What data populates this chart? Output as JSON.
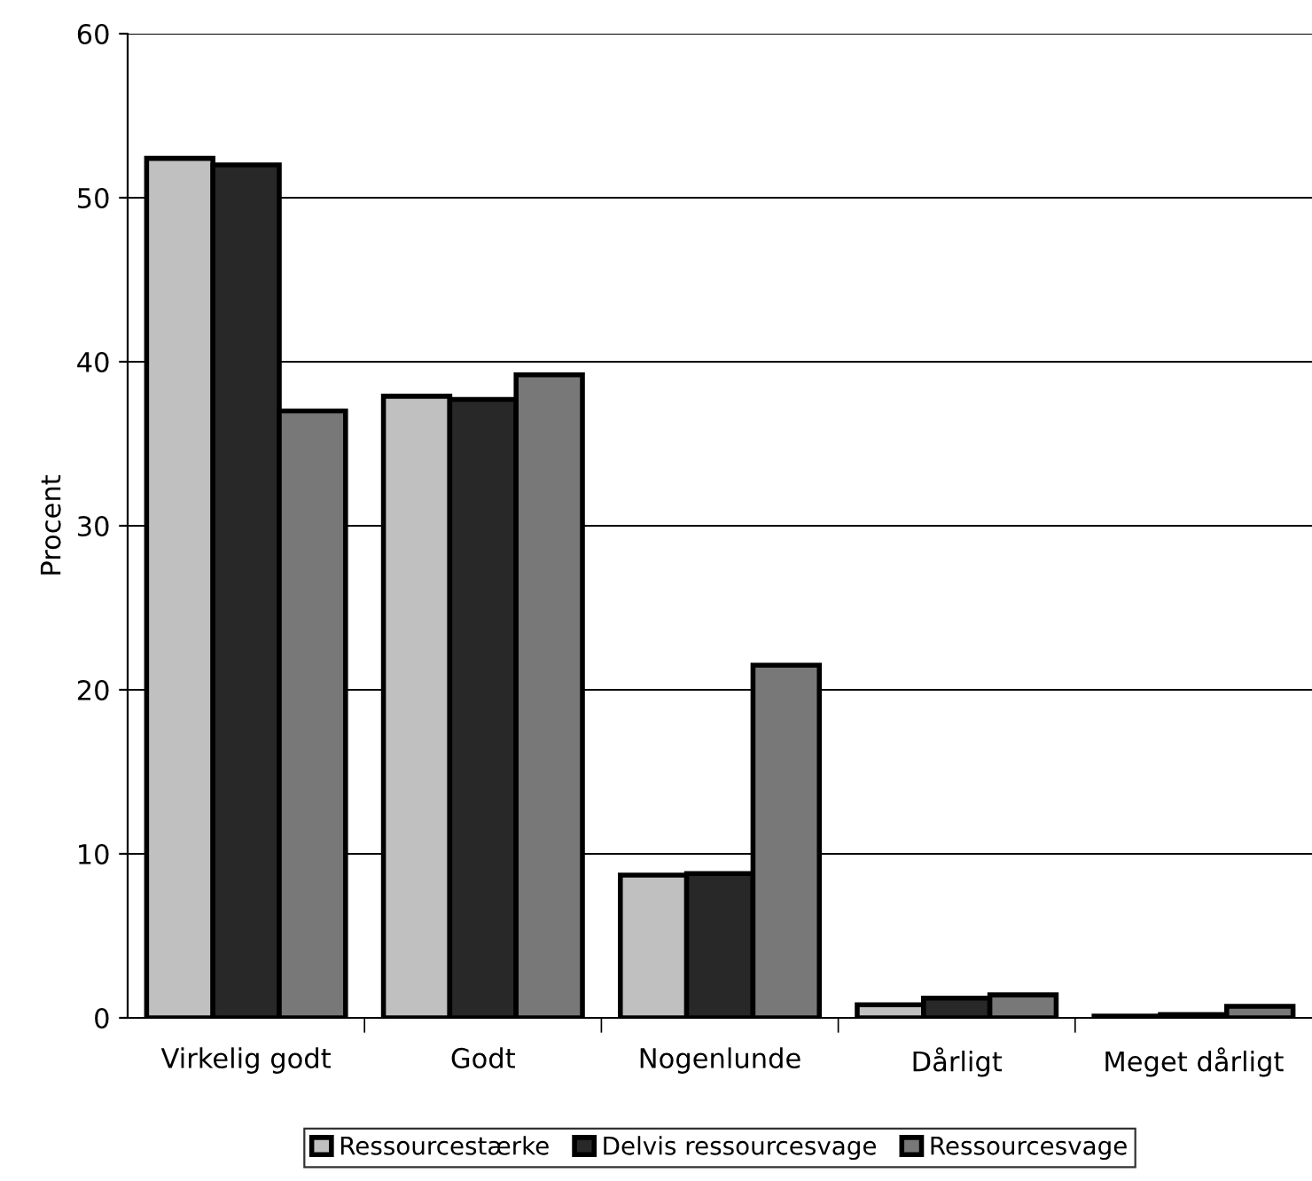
{
  "chart_data": {
    "type": "bar",
    "ylabel": "Procent",
    "categories": [
      "Virkelig godt",
      "Godt",
      "Nogenlunde",
      "Dårligt",
      "Meget dårligt"
    ],
    "series": [
      {
        "name": "Ressourcestærke",
        "color": "#c0c0c0",
        "values": [
          52.4,
          37.9,
          8.7,
          0.8,
          0.1
        ]
      },
      {
        "name": "Delvis ressourcesvage",
        "color": "#282828",
        "values": [
          52.0,
          37.7,
          8.8,
          1.2,
          0.2
        ]
      },
      {
        "name": "Ressourcesvage",
        "color": "#787878",
        "values": [
          37.0,
          39.2,
          21.5,
          1.4,
          0.7
        ]
      }
    ],
    "ylim": [
      0,
      60
    ],
    "yticks": [
      0,
      10,
      20,
      30,
      40,
      50,
      60
    ],
    "grid": "y",
    "legend": "bottom"
  }
}
